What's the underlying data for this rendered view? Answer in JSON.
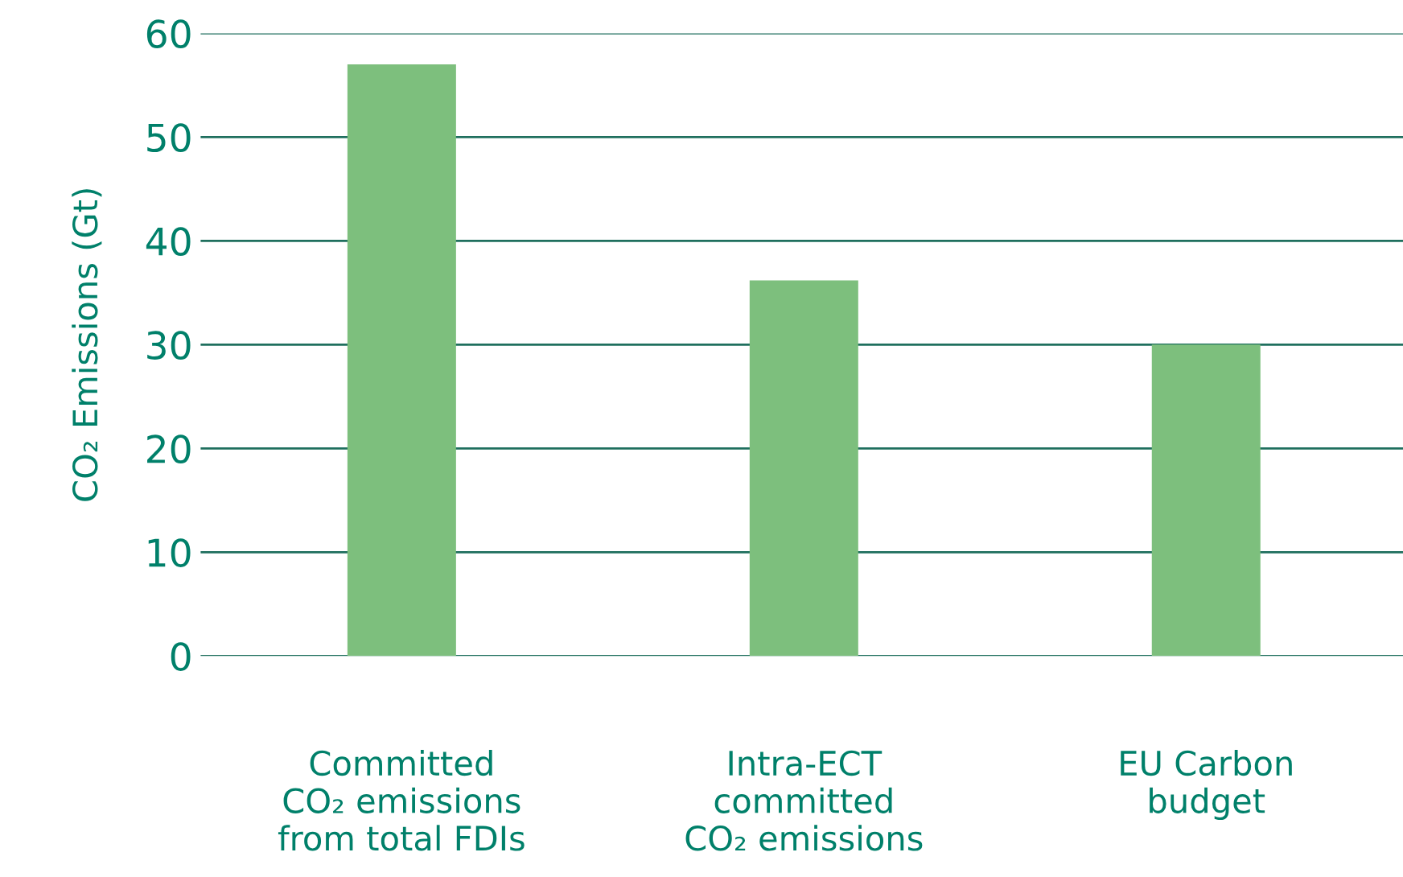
{
  "chart_data": {
    "type": "bar",
    "ylabel": "CO₂ Emissions (Gt)",
    "categories": [
      "Committed\nCO₂ emissions\nfrom total FDIs",
      "Intra-ECT\ncommitted\nCO₂ emissions",
      "EU Carbon\nbudget"
    ],
    "values": [
      57,
      36.2,
      30
    ],
    "color": "#7dbf7d",
    "ylim": [
      0,
      60
    ],
    "yticks": [
      0,
      10,
      20,
      30,
      40,
      50,
      60
    ],
    "grid": "y"
  }
}
